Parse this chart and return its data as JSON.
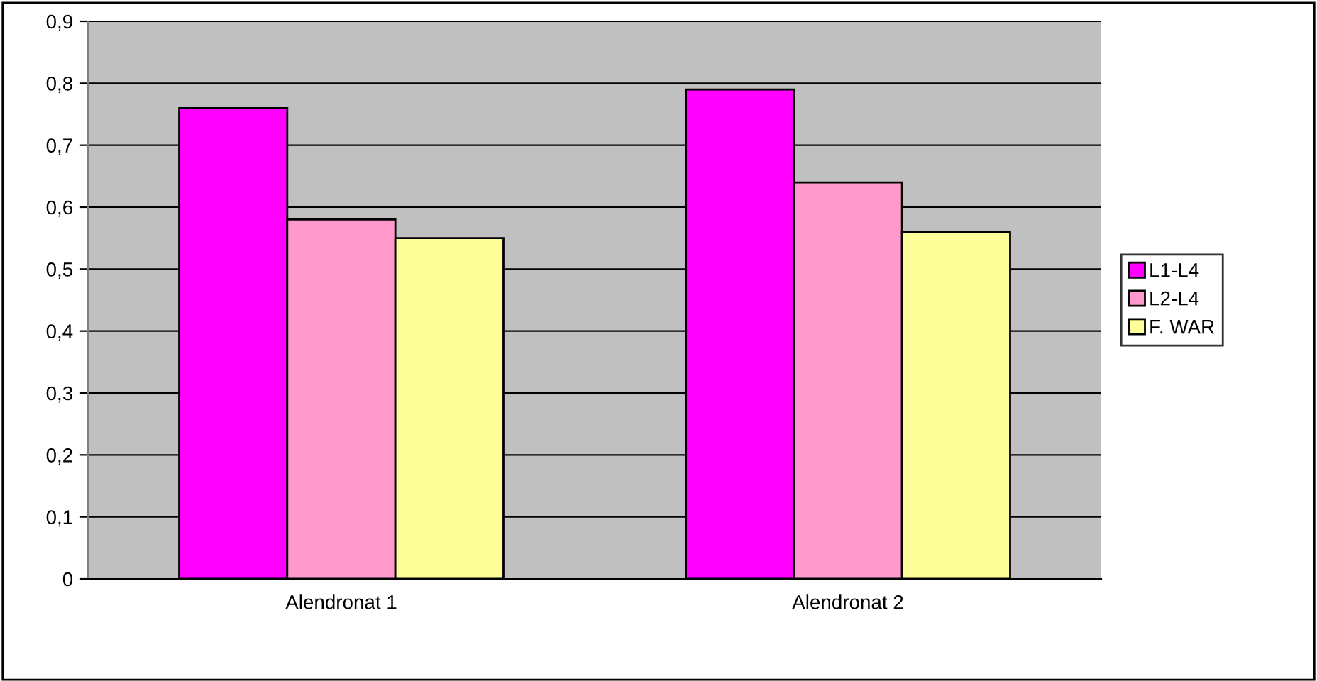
{
  "chart_data": {
    "type": "bar",
    "categories": [
      "Alendronat 1",
      "Alendronat 2"
    ],
    "series": [
      {
        "name": "L1-L4",
        "color": "#ff00ff",
        "values": [
          0.76,
          0.79
        ]
      },
      {
        "name": "L2-L4",
        "color": "#ff99cc",
        "values": [
          0.58,
          0.64
        ]
      },
      {
        "name": "F. WAR",
        "color": "#ffff99",
        "values": [
          0.55,
          0.56
        ]
      }
    ],
    "ylim": [
      0,
      0.9
    ],
    "yticks": [
      0,
      {
        "value": 0.1,
        "label": "0,1"
      },
      {
        "value": 0.2,
        "label": "0,2"
      },
      {
        "value": 0.3,
        "label": "0,3"
      },
      {
        "value": 0.4,
        "label": "0,4"
      },
      {
        "value": 0.5,
        "label": "0,5"
      },
      {
        "value": 0.6,
        "label": "0,6"
      },
      {
        "value": 0.7,
        "label": "0,7"
      },
      {
        "value": 0.8,
        "label": "0,8"
      },
      {
        "value": 0.9,
        "label": "0,9"
      }
    ],
    "grid": "y",
    "legend": "right"
  }
}
